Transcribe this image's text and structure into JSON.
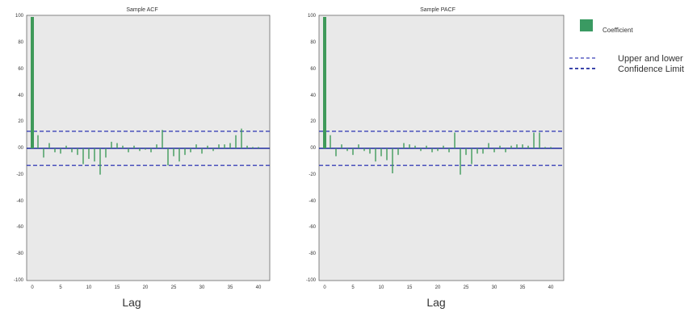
{
  "chart_data": [
    {
      "type": "bar",
      "title": "Sample ACF",
      "xlabel": "Lag",
      "ylabel": "",
      "xlim": [
        -1,
        42
      ],
      "ylim": [
        -1.0,
        1.0
      ],
      "x_ticks": [
        0,
        5,
        10,
        15,
        20,
        25,
        30,
        35,
        40
      ],
      "x_tick_labels": [
        "0",
        "5",
        "10",
        "15",
        "20",
        "25",
        "30",
        "35",
        "40"
      ],
      "y_ticks": [
        1.0,
        0.8,
        0.6,
        0.4,
        0.2,
        0.0,
        -0.2,
        -0.4,
        -0.6,
        -0.8,
        -1.0
      ],
      "y_tick_labels": [
        "100",
        "80",
        "60",
        "40",
        "20",
        "00",
        "-20",
        "-40",
        "-60",
        "-80",
        "-100"
      ],
      "confidence_limits": [
        0.13,
        -0.13
      ],
      "grid": false,
      "series": [
        {
          "name": "Coefficient",
          "x": [
            0,
            1,
            2,
            3,
            4,
            5,
            6,
            7,
            8,
            9,
            10,
            11,
            12,
            13,
            14,
            15,
            16,
            17,
            18,
            19,
            20,
            21,
            22,
            23,
            24,
            25,
            26,
            27,
            28,
            29,
            30,
            31,
            32,
            33,
            34,
            35,
            36,
            37,
            38,
            39,
            40
          ],
          "values": [
            1.0,
            0.1,
            -0.07,
            0.04,
            -0.03,
            -0.04,
            0.02,
            -0.03,
            -0.05,
            -0.12,
            -0.08,
            -0.1,
            -0.2,
            -0.07,
            0.05,
            0.04,
            0.02,
            -0.03,
            0.02,
            -0.02,
            -0.01,
            -0.03,
            0.03,
            0.14,
            -0.13,
            -0.06,
            -0.1,
            -0.05,
            -0.03,
            0.03,
            -0.04,
            0.02,
            -0.02,
            0.03,
            0.03,
            0.04,
            0.1,
            0.15,
            0.02,
            0.01,
            0.01
          ]
        }
      ]
    },
    {
      "type": "bar",
      "title": "Sample PACF",
      "xlabel": "Lag",
      "ylabel": "",
      "xlim": [
        -1,
        42
      ],
      "ylim": [
        -1.0,
        1.0
      ],
      "x_ticks": [
        0,
        5,
        10,
        15,
        20,
        25,
        30,
        35,
        40
      ],
      "x_tick_labels": [
        "0",
        "5",
        "10",
        "15",
        "20",
        "25",
        "30",
        "35",
        "40"
      ],
      "y_ticks": [
        1.0,
        0.8,
        0.6,
        0.4,
        0.2,
        0.0,
        -0.2,
        -0.4,
        -0.6,
        -0.8,
        -1.0
      ],
      "y_tick_labels": [
        "100",
        "80",
        "60",
        "40",
        "20",
        "00",
        "-20",
        "-40",
        "-60",
        "-80",
        "-100"
      ],
      "confidence_limits": [
        0.13,
        -0.13
      ],
      "grid": false,
      "series": [
        {
          "name": "Coefficient",
          "x": [
            0,
            1,
            2,
            3,
            4,
            5,
            6,
            7,
            8,
            9,
            10,
            11,
            12,
            13,
            14,
            15,
            16,
            17,
            18,
            19,
            20,
            21,
            22,
            23,
            24,
            25,
            26,
            27,
            28,
            29,
            30,
            31,
            32,
            33,
            34,
            35,
            36,
            37,
            38,
            39,
            40
          ],
          "values": [
            1.0,
            0.1,
            -0.06,
            0.03,
            -0.02,
            -0.05,
            0.03,
            -0.02,
            -0.04,
            -0.1,
            -0.06,
            -0.09,
            -0.19,
            -0.05,
            0.04,
            0.03,
            0.02,
            -0.02,
            0.02,
            -0.03,
            -0.02,
            0.02,
            -0.03,
            0.12,
            -0.2,
            -0.05,
            -0.12,
            -0.04,
            -0.04,
            0.04,
            -0.03,
            0.02,
            -0.03,
            0.02,
            0.03,
            0.03,
            0.02,
            0.12,
            0.12,
            0.01,
            0.01
          ]
        }
      ]
    }
  ],
  "legend": {
    "placement": "right",
    "coefficient_label": "Coefficient",
    "upper_lower_label": "Upper and lower",
    "confidence_limit_label": "Confidence Limit"
  },
  "colors": {
    "bar": "#3f9a5a",
    "bar_legend": "#3a9a62",
    "confidence": "#3a42b8",
    "plot_bg": "#e9e9e9",
    "zero_line": "#1f2a9e"
  }
}
